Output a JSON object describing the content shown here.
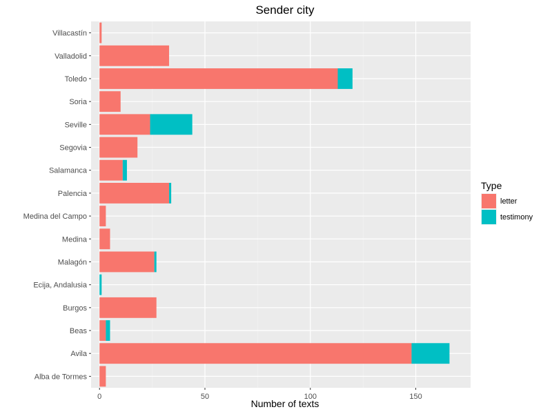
{
  "chart_data": {
    "type": "bar",
    "orientation": "horizontal",
    "stacked": true,
    "title": "Sender city",
    "xlabel": "Number of texts",
    "ylabel": "",
    "xlim": [
      -4,
      176
    ],
    "xticks": [
      0,
      50,
      100,
      150
    ],
    "grid": true,
    "legend": {
      "title": "Type",
      "position": "right"
    },
    "categories": [
      "Alba de Tormes",
      "Avila",
      "Beas",
      "Burgos",
      "Ecija, Andalusia",
      "Malagón",
      "Medina",
      "Medina del Campo",
      "Palencia",
      "Salamanca",
      "Segovia",
      "Seville",
      "Soria",
      "Toledo",
      "Valladolid",
      "Villacastín"
    ],
    "series": [
      {
        "name": "letter",
        "color": "#F8766D",
        "values": [
          3,
          148,
          3,
          27,
          0,
          26,
          5,
          3,
          33,
          11,
          18,
          24,
          10,
          113,
          33,
          1
        ]
      },
      {
        "name": "testimony",
        "color": "#00BFC4",
        "values": [
          0,
          18,
          2,
          0,
          1,
          1,
          0,
          0,
          1,
          2,
          0,
          20,
          0,
          7,
          0,
          0
        ]
      }
    ]
  }
}
